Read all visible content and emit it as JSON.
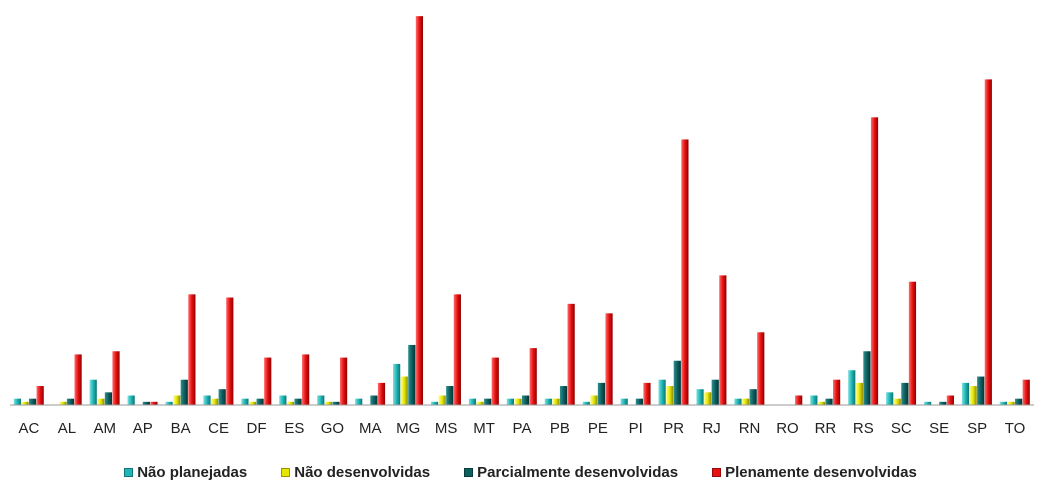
{
  "chart_data": {
    "type": "bar",
    "categories": [
      "AC",
      "AL",
      "AM",
      "AP",
      "BA",
      "CE",
      "DF",
      "ES",
      "GO",
      "MA",
      "MG",
      "MS",
      "MT",
      "PA",
      "PB",
      "PE",
      "PI",
      "PR",
      "RJ",
      "RN",
      "RO",
      "RR",
      "RS",
      "SC",
      "SE",
      "SP",
      "TO"
    ],
    "series": [
      {
        "name": "Não planejadas",
        "values": [
          2,
          0,
          8,
          3,
          1,
          3,
          2,
          3,
          3,
          2,
          13,
          1,
          2,
          2,
          2,
          1,
          2,
          8,
          5,
          2,
          0,
          3,
          11,
          4,
          1,
          7,
          1
        ],
        "color": "#1fb5b5"
      },
      {
        "name": "Não desenvolvidas",
        "values": [
          1,
          1,
          2,
          0,
          3,
          2,
          1,
          1,
          1,
          0,
          9,
          3,
          1,
          2,
          2,
          3,
          0,
          6,
          4,
          2,
          0,
          1,
          7,
          2,
          0,
          6,
          1
        ],
        "color": "#e6e600"
      },
      {
        "name": "Parcialmente desenvolvidas",
        "values": [
          2,
          2,
          4,
          1,
          8,
          5,
          2,
          2,
          1,
          3,
          19,
          6,
          2,
          3,
          6,
          7,
          2,
          14,
          8,
          5,
          0,
          2,
          17,
          7,
          1,
          9,
          2
        ],
        "color": "#0e5f5f"
      },
      {
        "name": "Plenamente desenvolvidas",
        "values": [
          6,
          16,
          17,
          1,
          35,
          34,
          15,
          16,
          15,
          7,
          123,
          35,
          15,
          18,
          32,
          29,
          7,
          84,
          41,
          23,
          3,
          8,
          91,
          39,
          3,
          103,
          8
        ],
        "color": "#e81010"
      }
    ],
    "ylim": [
      0,
      124
    ],
    "grid": false,
    "legend_position": "bottom",
    "xlabel": "",
    "ylabel": "",
    "title": ""
  }
}
